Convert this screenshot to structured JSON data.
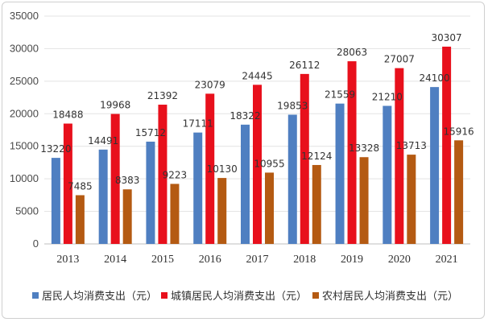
{
  "chart_data": {
    "type": "bar",
    "title": "",
    "xlabel": "",
    "ylabel": "",
    "categories": [
      "2013",
      "2014",
      "2015",
      "2016",
      "2017",
      "2018",
      "2019",
      "2020",
      "2021"
    ],
    "ylim": [
      0,
      35000
    ],
    "yticks": [
      0,
      5000,
      10000,
      15000,
      20000,
      25000,
      30000,
      35000
    ],
    "grid": true,
    "legend_position": "bottom",
    "series": [
      {
        "name": "居民人均消费支出（元）",
        "color": "#4f7fc1",
        "values": [
          13220,
          14491,
          15712,
          17111,
          18322,
          19853,
          21559,
          21210,
          24100
        ]
      },
      {
        "name": "城镇居民人均消费支出（元）",
        "color": "#e8101c",
        "values": [
          18488,
          19968,
          21392,
          23079,
          24445,
          26112,
          28063,
          27007,
          30307
        ]
      },
      {
        "name": "农村居民人均消费支出（元）",
        "color": "#b45a12",
        "values": [
          7485,
          8383,
          9223,
          10130,
          10955,
          12124,
          13328,
          13713,
          15916
        ]
      }
    ]
  }
}
